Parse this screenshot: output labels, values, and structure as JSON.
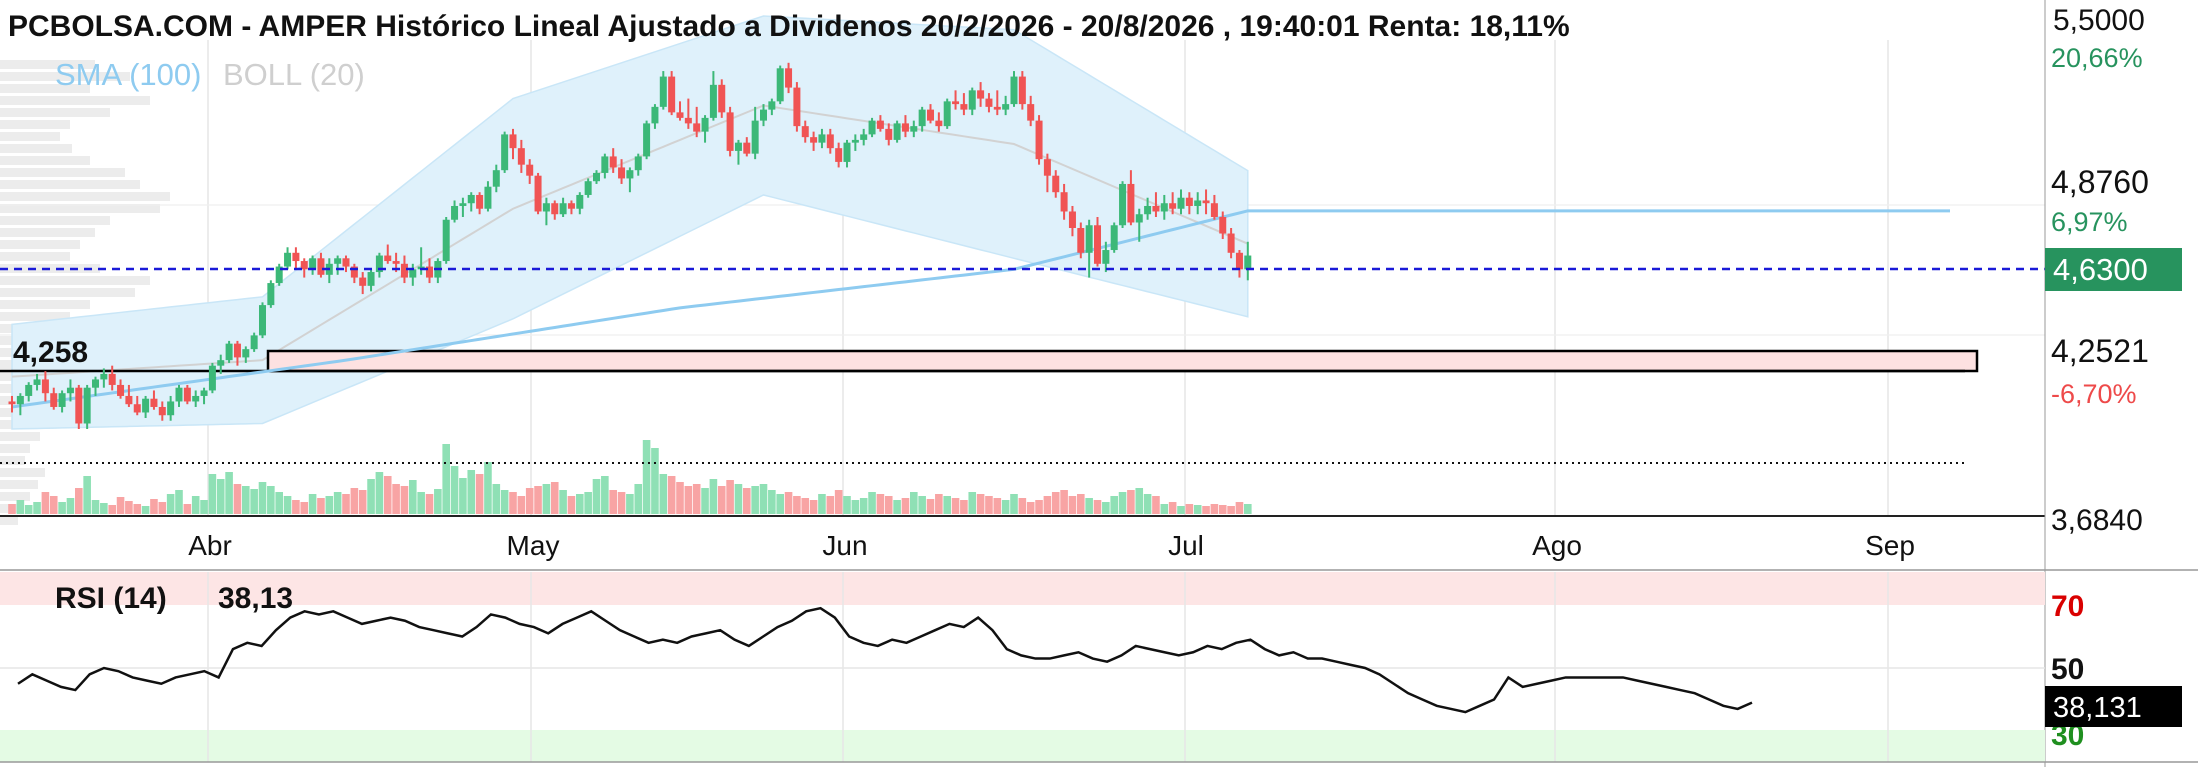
{
  "header": {
    "title": "PCBOLSA.COM - AMPER Histórico Lineal Ajustado a Dividenos 20/2/2026 - 20/8/2026 , 19:40:01 Renta: 18,11%"
  },
  "legend": {
    "sma": "SMA (100)",
    "boll": "BOLL (20)"
  },
  "price_axis": {
    "top_label": "5,5000",
    "top_pct": "20,66%",
    "mid_label": "4,8760",
    "mid_pct": "6,97%",
    "current_label": "4,6300",
    "low_label": "4,2521",
    "low_pct": "-6,70%",
    "bottom_label": "3,6840"
  },
  "support_label": "4,258",
  "months": [
    "Abr",
    "May",
    "Jun",
    "Jul",
    "Ago",
    "Sep"
  ],
  "rsi": {
    "title": "RSI (14)",
    "value": "38,13",
    "badge": "38,131",
    "levels": [
      "70",
      "50",
      "30"
    ]
  },
  "colors": {
    "up": "#3cb878",
    "down": "#f05454",
    "sma": "#8ecbf0",
    "boll_fill": "#dff1fb",
    "boll_mid": "#d2d2d2",
    "current_price": "#1a1ad8",
    "badge_bg": "#27935e",
    "pct_up": "#27935e",
    "pct_down": "#ee4a4a",
    "rsi_70": "#d90000",
    "rsi_30": "#1f8f1f"
  },
  "chart_data": {
    "type": "candlestick",
    "title": "PCBOLSA.COM - AMPER Histórico Lineal Ajustado a Dividenos 20/2/2026 - 20/8/2026 , 19:40:01 Renta: 18,11%",
    "current_price": 4.63,
    "support_level": 4.258,
    "zone": [
      4.25,
      4.29
    ],
    "ohlc": [
      [
        4.1,
        4.12,
        4.06,
        4.09
      ],
      [
        4.09,
        4.13,
        4.05,
        4.12
      ],
      [
        4.12,
        4.17,
        4.1,
        4.16
      ],
      [
        4.16,
        4.2,
        4.14,
        4.18
      ],
      [
        4.18,
        4.21,
        4.1,
        4.13
      ],
      [
        4.13,
        4.15,
        4.07,
        4.08
      ],
      [
        4.08,
        4.14,
        4.06,
        4.13
      ],
      [
        4.13,
        4.18,
        4.1,
        4.15
      ],
      [
        4.15,
        4.16,
        4.0,
        4.02
      ],
      [
        4.02,
        4.16,
        4.0,
        4.15
      ],
      [
        4.15,
        4.19,
        4.12,
        4.18
      ],
      [
        4.18,
        4.22,
        4.15,
        4.2
      ],
      [
        4.2,
        4.23,
        4.14,
        4.16
      ],
      [
        4.16,
        4.18,
        4.11,
        4.12
      ],
      [
        4.12,
        4.16,
        4.08,
        4.09
      ],
      [
        4.09,
        4.12,
        4.05,
        4.06
      ],
      [
        4.06,
        4.12,
        4.04,
        4.11
      ],
      [
        4.11,
        4.14,
        4.07,
        4.08
      ],
      [
        4.08,
        4.1,
        4.03,
        4.05
      ],
      [
        4.05,
        4.12,
        4.03,
        4.1
      ],
      [
        4.1,
        4.16,
        4.08,
        4.15
      ],
      [
        4.15,
        4.16,
        4.09,
        4.1
      ],
      [
        4.1,
        4.14,
        4.08,
        4.12
      ],
      [
        4.12,
        4.15,
        4.09,
        4.14
      ],
      [
        4.14,
        4.24,
        4.13,
        4.23
      ],
      [
        4.23,
        4.27,
        4.2,
        4.25
      ],
      [
        4.25,
        4.32,
        4.24,
        4.31
      ],
      [
        4.31,
        4.32,
        4.23,
        4.26
      ],
      [
        4.26,
        4.3,
        4.24,
        4.29
      ],
      [
        4.29,
        4.35,
        4.28,
        4.34
      ],
      [
        4.34,
        4.46,
        4.33,
        4.45
      ],
      [
        4.45,
        4.54,
        4.44,
        4.53
      ],
      [
        4.53,
        4.6,
        4.52,
        4.59
      ],
      [
        4.59,
        4.66,
        4.58,
        4.64
      ],
      [
        4.64,
        4.66,
        4.58,
        4.61
      ],
      [
        4.61,
        4.62,
        4.55,
        4.58
      ],
      [
        4.58,
        4.63,
        4.56,
        4.62
      ],
      [
        4.62,
        4.64,
        4.55,
        4.56
      ],
      [
        4.56,
        4.62,
        4.53,
        4.6
      ],
      [
        4.6,
        4.63,
        4.56,
        4.62
      ],
      [
        4.62,
        4.63,
        4.57,
        4.59
      ],
      [
        4.59,
        4.6,
        4.53,
        4.55
      ],
      [
        4.55,
        4.57,
        4.49,
        4.52
      ],
      [
        4.52,
        4.58,
        4.5,
        4.57
      ],
      [
        4.57,
        4.64,
        4.55,
        4.63
      ],
      [
        4.63,
        4.67,
        4.6,
        4.61
      ],
      [
        4.61,
        4.64,
        4.57,
        4.6
      ],
      [
        4.6,
        4.63,
        4.53,
        4.55
      ],
      [
        4.55,
        4.6,
        4.52,
        4.58
      ],
      [
        4.58,
        4.66,
        4.56,
        4.59
      ],
      [
        4.59,
        4.62,
        4.53,
        4.55
      ],
      [
        4.55,
        4.62,
        4.53,
        4.61
      ],
      [
        4.61,
        4.77,
        4.6,
        4.76
      ],
      [
        4.76,
        4.83,
        4.75,
        4.81
      ],
      [
        4.81,
        4.84,
        4.77,
        4.82
      ],
      [
        4.82,
        4.86,
        4.79,
        4.85
      ],
      [
        4.85,
        4.86,
        4.78,
        4.8
      ],
      [
        4.8,
        4.9,
        4.79,
        4.88
      ],
      [
        4.88,
        4.96,
        4.86,
        4.94
      ],
      [
        4.94,
        5.08,
        4.93,
        5.07
      ],
      [
        5.07,
        5.09,
        4.98,
        5.02
      ],
      [
        5.02,
        5.05,
        4.93,
        4.96
      ],
      [
        4.96,
        4.98,
        4.89,
        4.92
      ],
      [
        4.92,
        4.93,
        4.78,
        4.79
      ],
      [
        4.79,
        4.84,
        4.74,
        4.82
      ],
      [
        4.82,
        4.83,
        4.76,
        4.78
      ],
      [
        4.78,
        4.84,
        4.77,
        4.82
      ],
      [
        4.82,
        4.83,
        4.78,
        4.8
      ],
      [
        4.8,
        4.86,
        4.78,
        4.85
      ],
      [
        4.85,
        4.91,
        4.84,
        4.9
      ],
      [
        4.9,
        4.94,
        4.89,
        4.93
      ],
      [
        4.93,
        5.0,
        4.91,
        4.99
      ],
      [
        4.99,
        5.02,
        4.93,
        4.95
      ],
      [
        4.95,
        4.98,
        4.89,
        4.91
      ],
      [
        4.91,
        4.95,
        4.86,
        4.94
      ],
      [
        4.94,
        5.0,
        4.92,
        4.99
      ],
      [
        4.99,
        5.12,
        4.98,
        5.11
      ],
      [
        5.11,
        5.18,
        5.09,
        5.17
      ],
      [
        5.17,
        5.3,
        5.16,
        5.28
      ],
      [
        5.28,
        5.3,
        5.14,
        5.15
      ],
      [
        5.15,
        5.19,
        5.12,
        5.13
      ],
      [
        5.13,
        5.2,
        5.09,
        5.11
      ],
      [
        5.11,
        5.17,
        5.06,
        5.08
      ],
      [
        5.08,
        5.14,
        5.04,
        5.13
      ],
      [
        5.13,
        5.3,
        5.12,
        5.25
      ],
      [
        5.25,
        5.27,
        5.13,
        5.15
      ],
      [
        5.15,
        5.17,
        4.99,
        5.01
      ],
      [
        5.01,
        5.05,
        4.96,
        5.04
      ],
      [
        5.04,
        5.06,
        4.99,
        5.0
      ],
      [
        5.0,
        5.17,
        4.98,
        5.12
      ],
      [
        5.12,
        5.18,
        5.1,
        5.16
      ],
      [
        5.16,
        5.2,
        5.14,
        5.19
      ],
      [
        5.19,
        5.32,
        5.18,
        5.31
      ],
      [
        5.31,
        5.33,
        5.22,
        5.24
      ],
      [
        5.24,
        5.26,
        5.08,
        5.1
      ],
      [
        5.1,
        5.12,
        5.04,
        5.06
      ],
      [
        5.06,
        5.08,
        5.01,
        5.04
      ],
      [
        5.04,
        5.09,
        5.02,
        5.07
      ],
      [
        5.07,
        5.09,
        5.0,
        5.02
      ],
      [
        5.02,
        5.04,
        4.95,
        4.97
      ],
      [
        4.97,
        5.05,
        4.95,
        5.04
      ],
      [
        5.04,
        5.07,
        5.01,
        5.05
      ],
      [
        5.05,
        5.09,
        5.03,
        5.07
      ],
      [
        5.07,
        5.13,
        5.06,
        5.12
      ],
      [
        5.12,
        5.14,
        5.08,
        5.09
      ],
      [
        5.09,
        5.11,
        5.03,
        5.05
      ],
      [
        5.05,
        5.12,
        5.04,
        5.11
      ],
      [
        5.11,
        5.14,
        5.06,
        5.08
      ],
      [
        5.08,
        5.12,
        5.06,
        5.1
      ],
      [
        5.1,
        5.17,
        5.08,
        5.16
      ],
      [
        5.16,
        5.18,
        5.11,
        5.12
      ],
      [
        5.12,
        5.15,
        5.08,
        5.1
      ],
      [
        5.1,
        5.2,
        5.09,
        5.19
      ],
      [
        5.19,
        5.23,
        5.16,
        5.18
      ],
      [
        5.18,
        5.22,
        5.14,
        5.16
      ],
      [
        5.16,
        5.24,
        5.14,
        5.23
      ],
      [
        5.23,
        5.26,
        5.17,
        5.2
      ],
      [
        5.2,
        5.22,
        5.15,
        5.17
      ],
      [
        5.17,
        5.23,
        5.14,
        5.16
      ],
      [
        5.16,
        5.21,
        5.14,
        5.18
      ],
      [
        5.18,
        5.3,
        5.17,
        5.28
      ],
      [
        5.28,
        5.3,
        5.16,
        5.18
      ],
      [
        5.18,
        5.21,
        5.1,
        5.12
      ],
      [
        5.12,
        5.14,
        4.96,
        4.98
      ],
      [
        4.98,
        5.0,
        4.86,
        4.92
      ],
      [
        4.92,
        4.94,
        4.84,
        4.86
      ],
      [
        4.86,
        4.89,
        4.76,
        4.79
      ],
      [
        4.79,
        4.81,
        4.7,
        4.73
      ],
      [
        4.73,
        4.75,
        4.62,
        4.64
      ],
      [
        4.64,
        4.76,
        4.55,
        4.74
      ],
      [
        4.74,
        4.77,
        4.59,
        4.6
      ],
      [
        4.6,
        4.68,
        4.57,
        4.65
      ],
      [
        4.65,
        4.75,
        4.64,
        4.74
      ],
      [
        4.74,
        4.9,
        4.73,
        4.89
      ],
      [
        4.89,
        4.94,
        4.74,
        4.75
      ],
      [
        4.75,
        4.8,
        4.68,
        4.78
      ],
      [
        4.78,
        4.84,
        4.76,
        4.81
      ],
      [
        4.81,
        4.86,
        4.77,
        4.79
      ],
      [
        4.79,
        4.85,
        4.76,
        4.82
      ],
      [
        4.82,
        4.86,
        4.78,
        4.8
      ],
      [
        4.8,
        4.87,
        4.78,
        4.84
      ],
      [
        4.84,
        4.86,
        4.78,
        4.81
      ],
      [
        4.81,
        4.86,
        4.78,
        4.83
      ],
      [
        4.83,
        4.87,
        4.78,
        4.82
      ],
      [
        4.82,
        4.85,
        4.76,
        4.77
      ],
      [
        4.77,
        4.79,
        4.69,
        4.71
      ],
      [
        4.71,
        4.73,
        4.62,
        4.64
      ],
      [
        4.64,
        4.65,
        4.55,
        4.58
      ],
      [
        4.58,
        4.68,
        4.54,
        4.63
      ]
    ],
    "sma100": {
      "start_index": 0,
      "values_at": [
        [
          0,
          4.08
        ],
        [
          40,
          4.25
        ],
        [
          80,
          4.44
        ],
        [
          120,
          4.58
        ],
        [
          149,
          4.8
        ]
      ]
    },
    "bollinger": {
      "upper": [
        [
          0,
          4.38
        ],
        [
          30,
          4.48
        ],
        [
          60,
          5.2
        ],
        [
          90,
          5.5
        ],
        [
          120,
          5.45
        ],
        [
          149,
          4.92
        ]
      ],
      "lower": [
        [
          0,
          4.0
        ],
        [
          30,
          4.02
        ],
        [
          60,
          4.4
        ],
        [
          90,
          4.85
        ],
        [
          120,
          4.62
        ],
        [
          149,
          4.4
        ]
      ]
    },
    "rsi": [
      45,
      48,
      46,
      44,
      43,
      48,
      50,
      49,
      47,
      46,
      45,
      47,
      48,
      49,
      47,
      56,
      58,
      57,
      62,
      66,
      68,
      67,
      68,
      66,
      64,
      65,
      66,
      65,
      63,
      62,
      61,
      60,
      63,
      67,
      66,
      64,
      63,
      61,
      64,
      66,
      68,
      65,
      62,
      60,
      58,
      59,
      58,
      60,
      61,
      62,
      59,
      57,
      60,
      63,
      65,
      68,
      69,
      66,
      60,
      58,
      57,
      59,
      58,
      60,
      62,
      64,
      63,
      66,
      62,
      56,
      54,
      53,
      53,
      54,
      55,
      53,
      52,
      54,
      57,
      56,
      55,
      54,
      55,
      57,
      56,
      58,
      59,
      56,
      54,
      55,
      53,
      53,
      52,
      51,
      50,
      48,
      45,
      42,
      40,
      38,
      37,
      36,
      38,
      40,
      47,
      44,
      45,
      46,
      47,
      47,
      47,
      47,
      47,
      46,
      45,
      44,
      43,
      42,
      40,
      38,
      37,
      39
    ]
  }
}
